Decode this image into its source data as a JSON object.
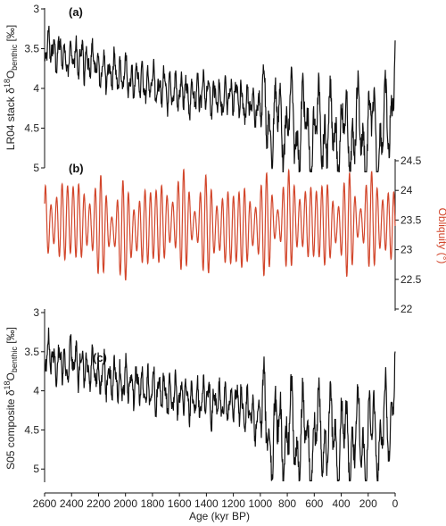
{
  "chart_data": [
    {
      "panel": "(a)",
      "type": "line",
      "ylabel": {
        "main": "LR04 stack δ",
        "sup": "18",
        "mid": "O",
        "sub": "benthic",
        "unit": " [‰]"
      },
      "ylim": [
        3,
        5
      ],
      "y_inverted": true,
      "yticks": [
        "3",
        "3.5",
        "4",
        "4.5",
        "5"
      ],
      "xlim": [
        2600,
        0
      ],
      "color": "#111111",
      "series": [
        {
          "x": [
            2600,
            2560,
            2520,
            2480,
            2440,
            2400,
            2360,
            2320,
            2280,
            2240,
            2200,
            2160,
            2120,
            2080,
            2040,
            2000,
            1960,
            1920,
            1880,
            1840,
            1800,
            1760,
            1720,
            1680,
            1640,
            1600,
            1560,
            1520,
            1480,
            1440,
            1400,
            1360,
            1320,
            1280,
            1240,
            1200,
            1160,
            1120,
            1080,
            1040,
            1000,
            960,
            920,
            880,
            840,
            800,
            760,
            720,
            680,
            640,
            600,
            560,
            520,
            480,
            440,
            400,
            360,
            320,
            280,
            240,
            200,
            160,
            120,
            80,
            40,
            0
          ],
          "values": [
            3.55,
            3.45,
            3.6,
            3.5,
            3.7,
            3.55,
            3.65,
            3.6,
            3.75,
            3.6,
            3.8,
            3.7,
            3.85,
            3.75,
            3.9,
            3.8,
            3.95,
            3.85,
            3.9,
            4.0,
            3.9,
            4.05,
            3.95,
            4.1,
            4.0,
            4.1,
            4.0,
            4.15,
            4.05,
            4.1,
            4.0,
            4.15,
            4.05,
            4.2,
            4.1,
            4.1,
            4.05,
            4.25,
            4.15,
            4.3,
            4.25,
            4.35,
            4.4,
            4.45,
            4.35,
            4.5,
            4.4,
            4.55,
            4.45,
            4.6,
            4.55,
            4.5,
            4.45,
            4.6,
            4.55,
            4.5,
            4.65,
            4.55,
            4.5,
            4.6,
            4.55,
            4.5,
            4.6,
            4.55,
            4.5,
            3.3
          ]
        }
      ]
    },
    {
      "panel": "(b)",
      "type": "line",
      "ylabel": "Obliquity (°)",
      "ylim": [
        22,
        24.5
      ],
      "yticks": [
        "22",
        "22.5",
        "23",
        "23.5",
        "24",
        "24.5"
      ],
      "xlim": [
        2600,
        0
      ],
      "period_kyr": 41,
      "color": "#d2452a",
      "series": [
        {
          "x": [
            2600,
            2400,
            2200,
            2000,
            1800,
            1600,
            1400,
            1200,
            1000,
            800,
            600,
            400,
            200,
            0
          ],
          "values": [
            23.4,
            23.5,
            23.4,
            23.3,
            23.4,
            23.5,
            23.4,
            23.35,
            23.4,
            23.5,
            23.45,
            23.4,
            23.5,
            23.4
          ]
        }
      ]
    },
    {
      "panel": "(c)",
      "type": "line",
      "ylabel": {
        "main": "S05 composite δ",
        "sup": "18",
        "mid": "O",
        "sub": "benthic",
        "unit": " [‰]"
      },
      "ylim": [
        3,
        5.1
      ],
      "y_inverted": true,
      "yticks": [
        "3",
        "3.5",
        "4",
        "4.5",
        "5"
      ],
      "xlim": [
        2600,
        0
      ],
      "xlabel": "Age (kyr BP)",
      "xticks": [
        "2600",
        "2400",
        "2200",
        "2000",
        "1800",
        "1600",
        "1400",
        "1200",
        "1000",
        "800",
        "600",
        "400",
        "200",
        "0"
      ],
      "color": "#111111",
      "series": [
        {
          "x": [
            2600,
            2560,
            2520,
            2480,
            2440,
            2400,
            2360,
            2320,
            2280,
            2240,
            2200,
            2160,
            2120,
            2080,
            2040,
            2000,
            1960,
            1920,
            1880,
            1840,
            1800,
            1760,
            1720,
            1680,
            1640,
            1600,
            1560,
            1520,
            1480,
            1440,
            1400,
            1360,
            1320,
            1280,
            1240,
            1200,
            1160,
            1120,
            1080,
            1040,
            1000,
            960,
            920,
            880,
            840,
            800,
            760,
            720,
            680,
            640,
            600,
            560,
            520,
            480,
            440,
            400,
            360,
            320,
            280,
            240,
            200,
            160,
            120,
            80,
            40,
            0
          ],
          "values": [
            3.6,
            3.5,
            3.7,
            3.6,
            3.75,
            3.5,
            3.7,
            3.65,
            3.8,
            3.7,
            3.85,
            3.75,
            3.9,
            3.8,
            3.95,
            3.85,
            3.95,
            3.9,
            3.95,
            4.0,
            3.95,
            4.05,
            4.0,
            4.1,
            4.05,
            4.1,
            4.0,
            4.15,
            4.1,
            4.1,
            4.05,
            4.2,
            4.1,
            4.2,
            4.15,
            4.15,
            4.1,
            4.3,
            4.2,
            4.4,
            4.3,
            4.45,
            4.5,
            4.6,
            4.45,
            4.6,
            4.5,
            4.65,
            4.55,
            4.7,
            4.6,
            4.55,
            4.5,
            4.65,
            4.6,
            4.55,
            4.7,
            4.6,
            4.55,
            4.65,
            4.6,
            4.55,
            4.6,
            4.55,
            4.5,
            3.35
          ]
        }
      ]
    }
  ]
}
